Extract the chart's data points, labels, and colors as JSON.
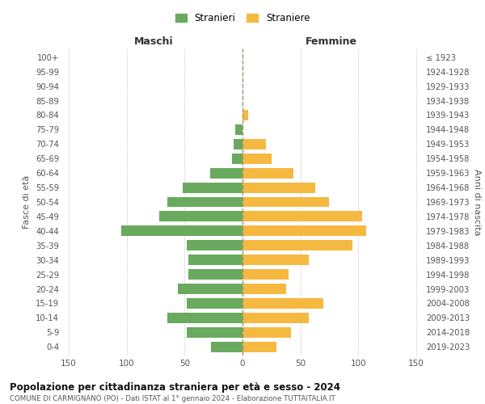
{
  "age_groups_bottom_to_top": [
    "0-4",
    "5-9",
    "10-14",
    "15-19",
    "20-24",
    "25-29",
    "30-34",
    "35-39",
    "40-44",
    "45-49",
    "50-54",
    "55-59",
    "60-64",
    "65-69",
    "70-74",
    "75-79",
    "80-84",
    "85-89",
    "90-94",
    "95-99",
    "100+"
  ],
  "birth_years_bottom_to_top": [
    "2019-2023",
    "2014-2018",
    "2009-2013",
    "2004-2008",
    "1999-2003",
    "1994-1998",
    "1989-1993",
    "1984-1988",
    "1979-1983",
    "1974-1978",
    "1969-1973",
    "1964-1968",
    "1959-1963",
    "1954-1958",
    "1949-1953",
    "1944-1948",
    "1939-1943",
    "1934-1938",
    "1929-1933",
    "1924-1928",
    "≤ 1923"
  ],
  "males_bottom_to_top": [
    27,
    48,
    65,
    48,
    56,
    47,
    47,
    48,
    105,
    72,
    65,
    52,
    28,
    9,
    8,
    6,
    0,
    0,
    0,
    0,
    0
  ],
  "females_bottom_to_top": [
    29,
    42,
    57,
    70,
    38,
    40,
    57,
    95,
    107,
    103,
    75,
    63,
    44,
    25,
    20,
    0,
    5,
    0,
    0,
    0,
    0
  ],
  "male_color": "#6aaa5e",
  "female_color": "#f5b942",
  "background_color": "#ffffff",
  "grid_color": "#cccccc",
  "title": "Popolazione per cittadinanza straniera per età e sesso - 2024",
  "subtitle": "COMUNE DI CARMIGNANO (PO) - Dati ISTAT al 1° gennaio 2024 - Elaborazione TUTTAITALIA.IT",
  "xlabel_left": "Maschi",
  "xlabel_right": "Femmine",
  "ylabel_left": "Fasce di età",
  "ylabel_right": "Anni di nascita",
  "legend_male": "Stranieri",
  "legend_female": "Straniere",
  "xlim": 155
}
